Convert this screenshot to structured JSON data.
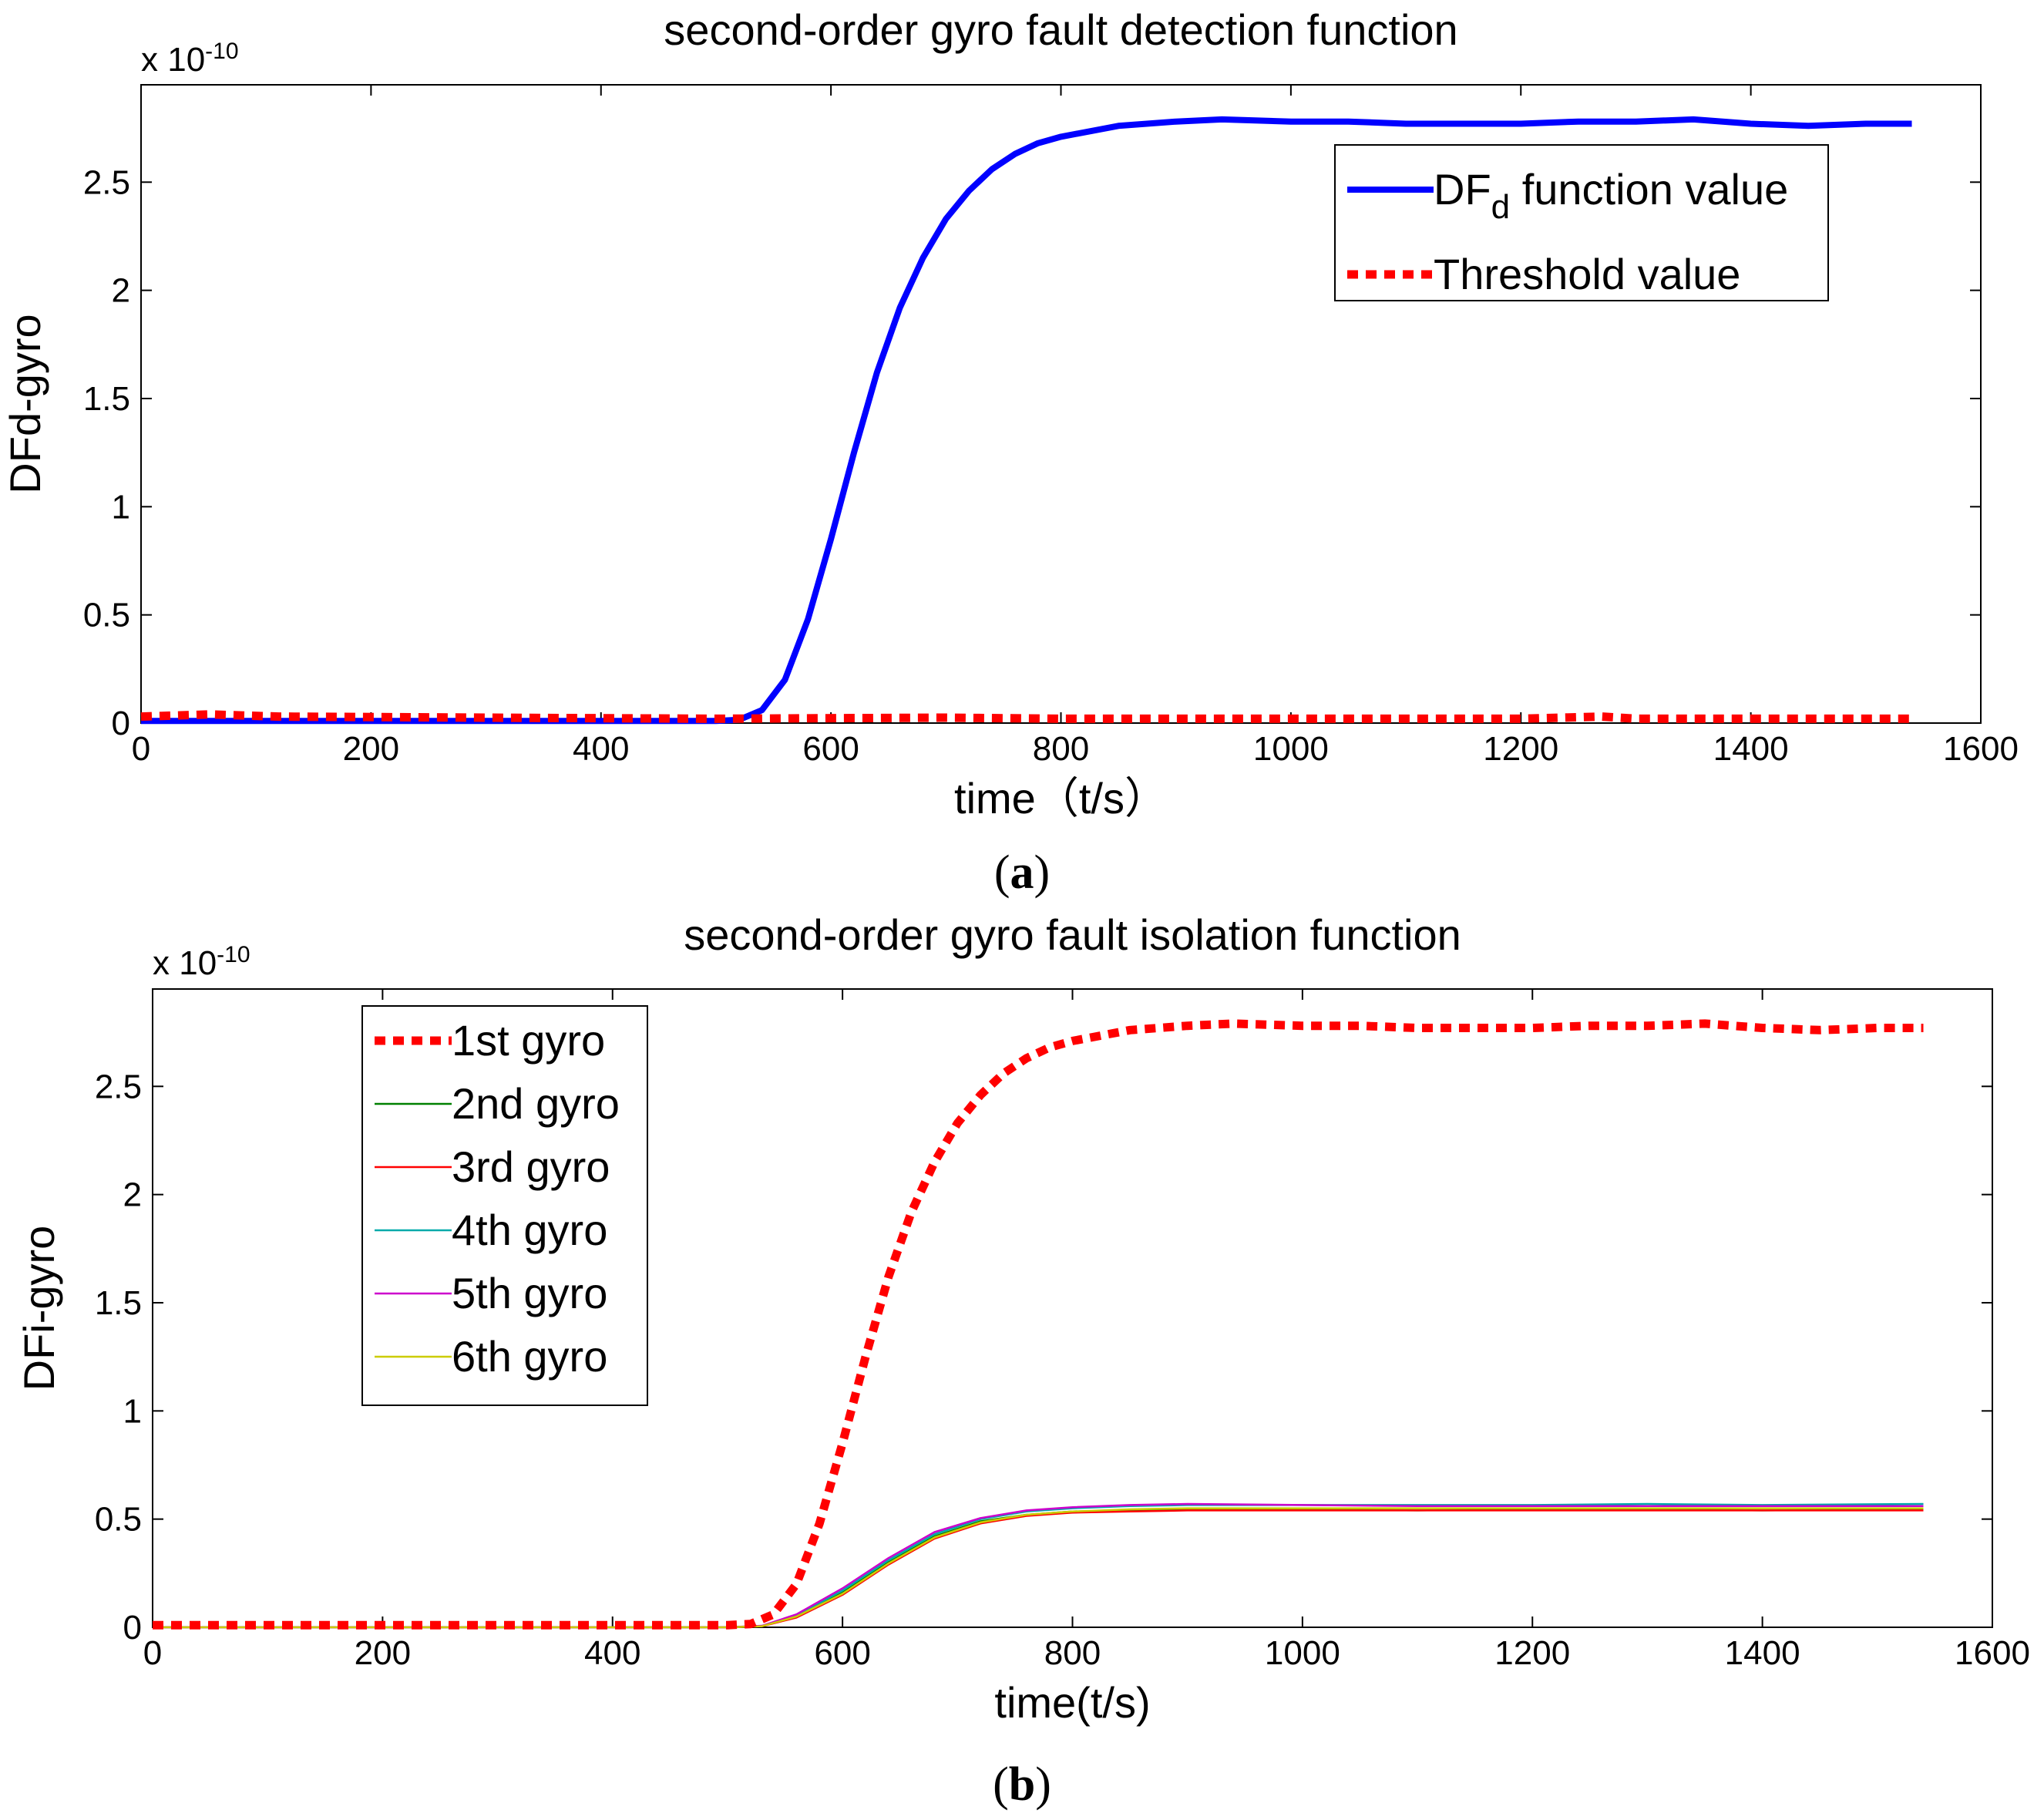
{
  "chart_data": [
    {
      "type": "line",
      "panel_label": "a",
      "title": "second-order gyro fault detection function",
      "xlabel": "time（t/s）",
      "ylabel": "DFd-gyro",
      "y_scale_base": "x 10",
      "y_scale_exponent": "-10",
      "xlim": [
        0,
        1600
      ],
      "ylim": [
        0,
        2.95
      ],
      "xticks": [
        0,
        200,
        400,
        600,
        800,
        1000,
        1200,
        1400,
        1600
      ],
      "yticks": [
        0,
        0.5,
        1,
        1.5,
        2,
        2.5
      ],
      "ytick_labels": [
        "0",
        "0.5",
        "1",
        "1.5",
        "2",
        "2.5"
      ],
      "legend_position": "top-right",
      "series": [
        {
          "name": "DF",
          "name_subscript": "d",
          "name_suffix": " function value",
          "color": "#0000ff",
          "style": "solid",
          "x": [
            0,
            100,
            200,
            300,
            400,
            500,
            520,
            540,
            560,
            580,
            600,
            620,
            640,
            660,
            680,
            700,
            720,
            740,
            760,
            780,
            800,
            850,
            900,
            940,
            1000,
            1050,
            1100,
            1150,
            1200,
            1250,
            1300,
            1350,
            1400,
            1450,
            1500,
            1540
          ],
          "y": [
            0.01,
            0.01,
            0.01,
            0.01,
            0.01,
            0.01,
            0.015,
            0.06,
            0.2,
            0.48,
            0.85,
            1.25,
            1.62,
            1.92,
            2.15,
            2.33,
            2.46,
            2.56,
            2.63,
            2.68,
            2.71,
            2.76,
            2.78,
            2.79,
            2.78,
            2.78,
            2.77,
            2.77,
            2.77,
            2.78,
            2.78,
            2.79,
            2.77,
            2.76,
            2.77,
            2.77
          ]
        },
        {
          "name": "Threshold value",
          "color": "#ff0000",
          "style": "dotted",
          "x": [
            0,
            60,
            120,
            300,
            500,
            700,
            800,
            1000,
            1200,
            1270,
            1300,
            1540
          ],
          "y": [
            0.03,
            0.04,
            0.03,
            0.025,
            0.02,
            0.025,
            0.02,
            0.02,
            0.02,
            0.03,
            0.02,
            0.02
          ]
        }
      ]
    },
    {
      "type": "line",
      "panel_label": "b",
      "title": "second-order gyro fault isolation function",
      "xlabel": "time(t/s)",
      "ylabel": "DFi-gyro",
      "y_scale_base": "x 10",
      "y_scale_exponent": "-10",
      "xlim": [
        0,
        1600
      ],
      "ylim": [
        0,
        2.95
      ],
      "xticks": [
        0,
        200,
        400,
        600,
        800,
        1000,
        1200,
        1400,
        1600
      ],
      "yticks": [
        0,
        0.5,
        1,
        1.5,
        2,
        2.5
      ],
      "ytick_labels": [
        "0",
        "0.5",
        "1",
        "1.5",
        "2",
        "2.5"
      ],
      "legend_position": "top-left",
      "series": [
        {
          "name": "1st gyro",
          "color": "#ff0000",
          "style": "dotted",
          "x": [
            0,
            100,
            200,
            300,
            400,
            500,
            520,
            540,
            560,
            580,
            600,
            620,
            640,
            660,
            680,
            700,
            720,
            740,
            760,
            780,
            800,
            850,
            900,
            940,
            1000,
            1050,
            1100,
            1150,
            1200,
            1250,
            1300,
            1350,
            1400,
            1450,
            1500,
            1540
          ],
          "y": [
            0.01,
            0.01,
            0.01,
            0.01,
            0.01,
            0.01,
            0.015,
            0.06,
            0.2,
            0.48,
            0.85,
            1.25,
            1.62,
            1.92,
            2.15,
            2.33,
            2.46,
            2.56,
            2.63,
            2.68,
            2.71,
            2.76,
            2.78,
            2.79,
            2.78,
            2.78,
            2.77,
            2.77,
            2.77,
            2.78,
            2.78,
            2.79,
            2.77,
            2.76,
            2.77,
            2.77
          ]
        },
        {
          "name": "2nd gyro",
          "color": "#008000",
          "style": "solid",
          "x": [
            0,
            500,
            530,
            560,
            600,
            640,
            680,
            720,
            760,
            800,
            850,
            900,
            1000,
            1100,
            1200,
            1300,
            1400,
            1540
          ],
          "y": [
            0.0,
            0.0,
            0.005,
            0.05,
            0.16,
            0.3,
            0.42,
            0.49,
            0.52,
            0.535,
            0.54,
            0.545,
            0.545,
            0.54,
            0.545,
            0.545,
            0.54,
            0.545
          ]
        },
        {
          "name": "3rd gyro",
          "color": "#ff0000",
          "style": "solid",
          "x": [
            0,
            500,
            530,
            560,
            600,
            640,
            680,
            720,
            760,
            800,
            850,
            900,
            1000,
            1100,
            1200,
            1300,
            1400,
            1540
          ],
          "y": [
            0.0,
            0.0,
            0.005,
            0.045,
            0.15,
            0.29,
            0.41,
            0.48,
            0.515,
            0.53,
            0.535,
            0.54,
            0.54,
            0.54,
            0.54,
            0.54,
            0.54,
            0.54
          ]
        },
        {
          "name": "4th gyro",
          "color": "#00aaaa",
          "style": "solid",
          "x": [
            0,
            500,
            530,
            560,
            600,
            640,
            680,
            720,
            760,
            800,
            850,
            900,
            1000,
            1100,
            1200,
            1300,
            1400,
            1540
          ],
          "y": [
            0.0,
            0.0,
            0.006,
            0.055,
            0.17,
            0.31,
            0.43,
            0.5,
            0.535,
            0.55,
            0.56,
            0.565,
            0.565,
            0.565,
            0.565,
            0.57,
            0.565,
            0.57
          ]
        },
        {
          "name": "5th gyro",
          "color": "#cc00cc",
          "style": "solid",
          "x": [
            0,
            500,
            530,
            560,
            600,
            640,
            680,
            720,
            760,
            800,
            850,
            900,
            1000,
            1100,
            1200,
            1300,
            1400,
            1540
          ],
          "y": [
            0.0,
            0.0,
            0.007,
            0.06,
            0.18,
            0.32,
            0.44,
            0.505,
            0.54,
            0.555,
            0.565,
            0.57,
            0.565,
            0.56,
            0.56,
            0.56,
            0.56,
            0.56
          ]
        },
        {
          "name": "6th gyro",
          "color": "#cccc00",
          "style": "solid",
          "x": [
            0,
            500,
            530,
            560,
            600,
            640,
            680,
            720,
            760,
            800,
            850,
            900,
            1000,
            1100,
            1200,
            1300,
            1400,
            1540
          ],
          "y": [
            0.0,
            0.0,
            0.005,
            0.05,
            0.155,
            0.295,
            0.415,
            0.485,
            0.52,
            0.535,
            0.545,
            0.55,
            0.55,
            0.55,
            0.55,
            0.55,
            0.55,
            0.55
          ]
        }
      ]
    }
  ]
}
